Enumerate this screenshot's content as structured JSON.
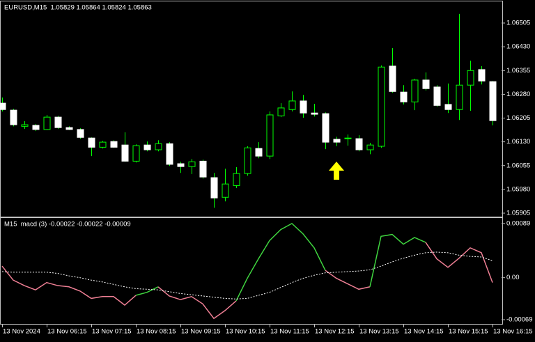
{
  "chart_data": [
    {
      "type": "candlestick",
      "title": "EURUSD,M15  1.05829 1.05864 1.05824 1.05863",
      "open": [
        1.06252,
        1.0623,
        1.06179,
        1.06182,
        1.06169,
        1.06208,
        1.06175,
        1.06169,
        1.06142,
        1.06113,
        1.06131,
        1.0612,
        1.06069,
        1.0612,
        1.06105,
        1.06124,
        1.06061,
        1.06052,
        1.06069,
        1.06017,
        1.05955,
        1.05992,
        1.0603,
        1.06109,
        1.06085,
        1.06212,
        1.06232,
        1.06259,
        1.06221,
        1.06219,
        1.06138,
        1.0614,
        1.0614,
        1.06105,
        1.06116,
        1.06369,
        1.06287,
        1.06256,
        1.06325,
        1.06303,
        1.06248,
        1.06232,
        1.06309,
        1.06358,
        1.0632
      ],
      "high": [
        1.0627,
        1.06234,
        1.06195,
        1.06186,
        1.06215,
        1.06212,
        1.06179,
        1.06173,
        1.06144,
        1.06133,
        1.06135,
        1.0616,
        1.06122,
        1.06131,
        1.06135,
        1.06129,
        1.06067,
        1.06076,
        1.06074,
        1.06032,
        1.06045,
        1.0605,
        1.06116,
        1.06129,
        1.06226,
        1.06252,
        1.06289,
        1.06278,
        1.0625,
        1.06223,
        1.06146,
        1.06153,
        1.06151,
        1.06127,
        1.06371,
        1.06426,
        1.06309,
        1.06329,
        1.06349,
        1.06309,
        1.06314,
        1.06534,
        1.06386,
        1.06369,
        1.06322
      ],
      "low": [
        1.06226,
        1.06179,
        1.06171,
        1.06164,
        1.06167,
        1.06171,
        1.06167,
        1.0614,
        1.06085,
        1.06109,
        1.06111,
        1.06067,
        1.06065,
        1.061,
        1.061,
        1.06054,
        1.06032,
        1.06028,
        1.06014,
        1.05922,
        1.05942,
        1.05984,
        1.06023,
        1.06078,
        1.06076,
        1.06208,
        1.06226,
        1.06206,
        1.0621,
        1.06107,
        1.06116,
        1.06118,
        1.061,
        1.06091,
        1.06111,
        1.06285,
        1.06248,
        1.0623,
        1.06292,
        1.06241,
        1.06221,
        1.06199,
        1.06228,
        1.06311,
        1.06182
      ],
      "close": [
        1.06232,
        1.06184,
        1.06184,
        1.06169,
        1.06208,
        1.06175,
        1.06169,
        1.06144,
        1.06113,
        1.06129,
        1.06113,
        1.06069,
        1.06118,
        1.06105,
        1.06124,
        1.06059,
        1.06052,
        1.06067,
        1.06019,
        1.05953,
        1.05997,
        1.0603,
        1.06111,
        1.06085,
        1.06215,
        1.06237,
        1.06259,
        1.06221,
        1.06217,
        1.06129,
        1.06129,
        1.06142,
        1.06105,
        1.0612,
        1.06366,
        1.06289,
        1.06256,
        1.06325,
        1.06298,
        1.06245,
        1.06232,
        1.06309,
        1.06355,
        1.06322,
        1.06197
      ],
      "up_color": "#000000",
      "down_color": "#ffffff",
      "wick_color": "#00ff00",
      "ylim": [
        1.05894,
        1.06571
      ],
      "yticks": [
        1.06505,
        {
          "value": 1.0643,
          "label": "1.06430"
        },
        1.06355,
        {
          "value": 1.0628,
          "label": "1.06280"
        },
        1.06205,
        {
          "value": 1.0613,
          "label": "1.06130"
        },
        1.06055,
        {
          "value": 1.0598,
          "label": "1.05980"
        },
        1.05905
      ]
    },
    {
      "type": "line",
      "title": "M15  macd (3) -0.00022 -0.00022 -0.00009",
      "categories": [
        "13 Nov 2024",
        null,
        null,
        null,
        "13 Nov 06:15",
        null,
        null,
        null,
        "13 Nov 07:15",
        null,
        null,
        null,
        "13 Nov 08:15",
        null,
        null,
        null,
        "13 Nov 09:15",
        null,
        null,
        null,
        "13 Nov 10:15",
        null,
        null,
        null,
        "13 Nov 11:15",
        null,
        null,
        null,
        "13 Nov 12:15",
        null,
        null,
        null,
        "13 Nov 13:15",
        null,
        null,
        null,
        "13 Nov 14:15",
        null,
        null,
        null,
        "13 Nov 15:15",
        null,
        null,
        null,
        "13 Nov 16:15"
      ],
      "series": [
        {
          "color": "#ee7f94",
          "values": [
            0.00019,
            -4e-05,
            -0.00013,
            -0.0002,
            -8e-05,
            -0.00013,
            -0.00015,
            -0.00022,
            -0.00034,
            -0.00031,
            -0.00031,
            -0.00045,
            -0.00029,
            -0.00024,
            -0.00015,
            -0.0003,
            -0.00036,
            -0.00031,
            -0.00043,
            -0.00067,
            -0.00054,
            -0.00038,
            -1e-05,
            0.00031,
            0.00061,
            0.00079,
            0.00089,
            0.00072,
            0.00049,
            0.00012,
            -1e-05,
            -0.0001,
            -0.00019,
            -0.00015,
            0.00068,
            0.00071,
            0.00055,
            0.00066,
            0.00058,
            0.00031,
            0.00017,
            0.00032,
            0.00049,
            0.00041,
            -8e-05
          ],
          "segment_colors": [
            "#ee7f94",
            "#ee7f94",
            "#ee7f94",
            "#ee7f94",
            "#ee7f94",
            "#ee7f94",
            "#ee7f94",
            "#ee7f94",
            "#ee7f94",
            "#ee7f94",
            "#ee7f94",
            "#ee7f94",
            "#ee7f94",
            "#3fd43f",
            "#3fd43f",
            "#ee7f94",
            "#ee7f94",
            "#ee7f94",
            "#ee7f94",
            "#ee7f94",
            "#ee7f94",
            "#ee7f94",
            "#3fd43f",
            "#3fd43f",
            "#3fd43f",
            "#3fd43f",
            "#3fd43f",
            "#3fd43f",
            "#3fd43f",
            "#3fd43f",
            "#ee7f94",
            "#ee7f94",
            "#ee7f94",
            "#ee7f94",
            "#3fd43f",
            "#3fd43f",
            "#3fd43f",
            "#3fd43f",
            "#3fd43f",
            "#ee7f94",
            "#ee7f94",
            "#ee7f94",
            "#ee7f94",
            "#ee7f94",
            "#ee7f94"
          ]
        },
        {
          "color": "#ffffff",
          "style": "dotted",
          "values": [
            0.0001,
            9e-05,
            9e-05,
            9e-05,
            9e-05,
            7e-05,
            3e-05,
            0,
            -4e-05,
            -7e-05,
            -0.00011,
            -0.00015,
            -0.00018,
            -0.00019,
            -0.0002,
            -0.00023,
            -0.00026,
            -0.00028,
            -0.0003,
            -0.00032,
            -0.00034,
            -0.00035,
            -0.00034,
            -0.00029,
            -0.00024,
            -0.00016,
            -8e-05,
            -1e-05,
            4e-05,
            8e-05,
            9e-05,
            0.0001,
            0.00011,
            0.00013,
            0.00019,
            0.00026,
            0.00032,
            0.00037,
            0.00041,
            0.00042,
            0.00041,
            0.00037,
            0.00035,
            0.00034,
            0.00028
          ]
        }
      ],
      "ylim": [
        -0.00077,
        0.00098
      ],
      "yticks": [
        0.00089,
        {
          "value": 0,
          "label": "0.00"
        },
        -0.00069
      ]
    }
  ]
}
